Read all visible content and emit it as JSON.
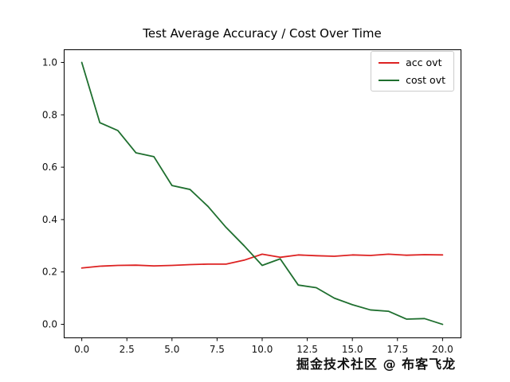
{
  "figure": {
    "background": "#ffffff",
    "watermark": "掘金技术社区 @ 布客飞龙"
  },
  "chart_data": {
    "type": "line",
    "title": "Test Average Accuracy / Cost Over Time",
    "xlabel": "",
    "ylabel": "",
    "grid": false,
    "legend_position": "upper right",
    "xlim": [
      -1,
      21
    ],
    "ylim": [
      -0.05,
      1.05
    ],
    "xticks": [
      0.0,
      2.5,
      5.0,
      7.5,
      10.0,
      12.5,
      15.0,
      17.5,
      20.0
    ],
    "xtick_labels": [
      "0.0",
      "2.5",
      "5.0",
      "7.5",
      "10.0",
      "12.5",
      "15.0",
      "17.5",
      "20.0"
    ],
    "yticks": [
      0.0,
      0.2,
      0.4,
      0.6,
      0.8,
      1.0
    ],
    "ytick_labels": [
      "0.0",
      "0.2",
      "0.4",
      "0.6",
      "0.8",
      "1.0"
    ],
    "x": [
      0,
      1,
      2,
      3,
      4,
      5,
      6,
      7,
      8,
      9,
      10,
      11,
      12,
      13,
      14,
      15,
      16,
      17,
      18,
      19,
      20
    ],
    "series": [
      {
        "name": "acc ovt",
        "color": "#dd2222",
        "values": [
          0.215,
          0.222,
          0.225,
          0.226,
          0.223,
          0.225,
          0.228,
          0.23,
          0.23,
          0.245,
          0.268,
          0.256,
          0.265,
          0.262,
          0.26,
          0.265,
          0.263,
          0.268,
          0.264,
          0.266,
          0.265
        ]
      },
      {
        "name": "cost ovt",
        "color": "#1f6f2f",
        "values": [
          1.0,
          0.77,
          0.74,
          0.655,
          0.64,
          0.53,
          0.515,
          0.45,
          0.37,
          0.3,
          0.225,
          0.25,
          0.15,
          0.14,
          0.1,
          0.075,
          0.055,
          0.05,
          0.02,
          0.022,
          0.0
        ]
      }
    ]
  }
}
